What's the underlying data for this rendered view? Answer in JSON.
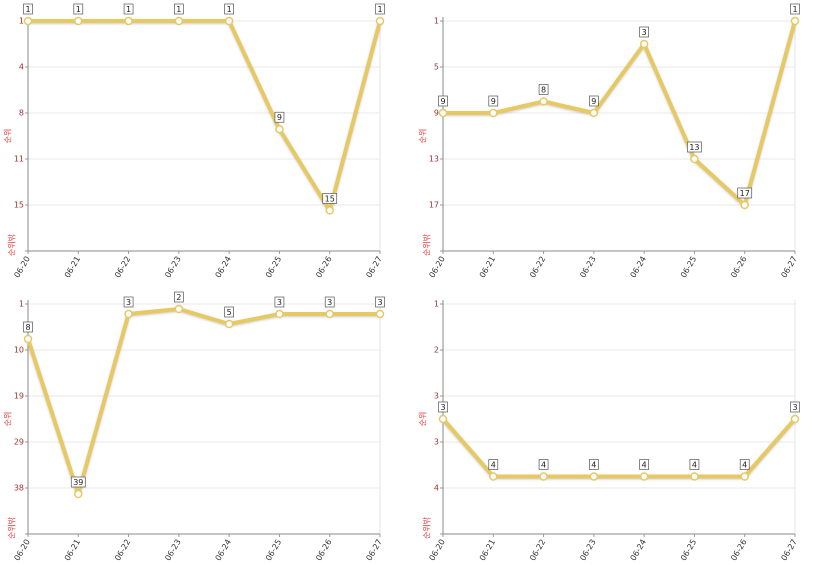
{
  "chart_data": [
    {
      "type": "line",
      "ylabel": "순위",
      "invert_y": true,
      "grid": true,
      "color": "#e6c964",
      "categories": [
        "06-20",
        "06-21",
        "06-22",
        "06-23",
        "06-24",
        "06-25",
        "06-26",
        "06-27"
      ],
      "values": [
        1,
        1,
        1,
        1,
        1,
        9,
        15,
        1
      ],
      "ylim": [
        1,
        18
      ],
      "yticks": [
        1,
        {
          "value": 4.4,
          "label": "4"
        },
        {
          "value": 7.8,
          "label": "8"
        },
        {
          "value": 11.2,
          "label": "11"
        },
        {
          "value": 14.6,
          "label": "15"
        },
        {
          "value": 18,
          "label": "순위밖"
        }
      ]
    },
    {
      "type": "line",
      "ylabel": "순위",
      "invert_y": true,
      "grid": true,
      "color": "#e6c964",
      "categories": [
        "06-20",
        "06-21",
        "06-22",
        "06-23",
        "06-24",
        "06-25",
        "06-26",
        "06-27"
      ],
      "values": [
        9,
        9,
        8,
        9,
        3,
        13,
        17,
        1
      ],
      "ylim": [
        1,
        21
      ],
      "yticks": [
        1,
        5,
        9,
        13,
        17,
        {
          "value": 21,
          "label": "순위밖"
        }
      ]
    },
    {
      "type": "line",
      "ylabel": "순위",
      "invert_y": true,
      "grid": true,
      "color": "#e6c964",
      "categories": [
        "06-20",
        "06-21",
        "06-22",
        "06-23",
        "06-24",
        "06-25",
        "06-26",
        "06-27"
      ],
      "values": [
        8,
        39,
        3,
        2,
        5,
        3,
        3,
        3
      ],
      "ylim": [
        1,
        47
      ],
      "yticks": [
        1,
        {
          "value": 10.2,
          "label": "10"
        },
        {
          "value": 19.4,
          "label": "19"
        },
        {
          "value": 28.6,
          "label": "29"
        },
        {
          "value": 37.8,
          "label": "38"
        },
        {
          "value": 47,
          "label": "순위밖"
        }
      ]
    },
    {
      "type": "line",
      "ylabel": "순위",
      "invert_y": true,
      "grid": true,
      "color": "#e6c964",
      "categories": [
        "06-20",
        "06-21",
        "06-22",
        "06-23",
        "06-24",
        "06-25",
        "06-26",
        "06-27"
      ],
      "values": [
        3,
        4,
        4,
        4,
        4,
        4,
        4,
        3
      ],
      "ylim": [
        1,
        5
      ],
      "yticks": [
        1,
        {
          "value": 1.8,
          "label": "2"
        },
        {
          "value": 2.6,
          "label": "3"
        },
        {
          "value": 3.4,
          "label": "3"
        },
        {
          "value": 4.2,
          "label": "4"
        },
        {
          "value": 5,
          "label": "순위밖"
        }
      ]
    }
  ]
}
